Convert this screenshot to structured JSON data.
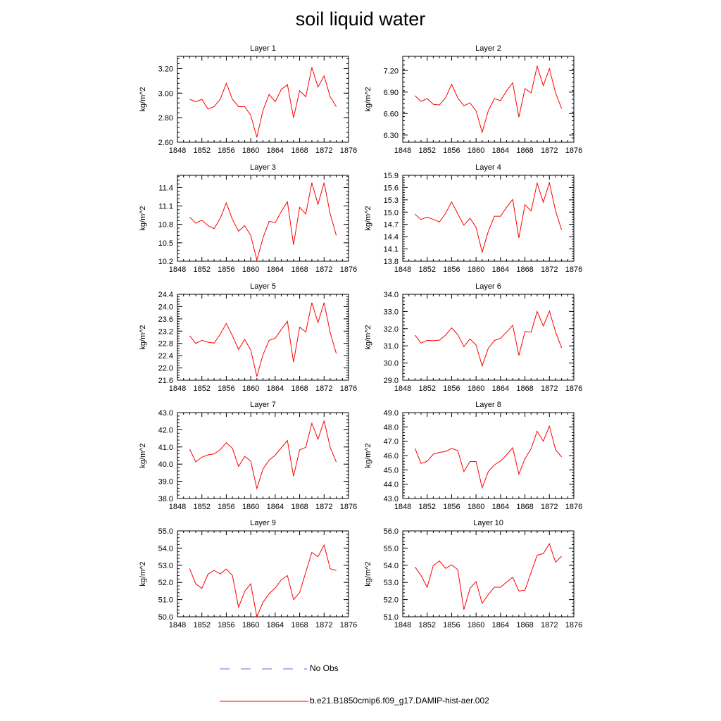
{
  "title": "soil liquid water",
  "colors": {
    "model_line": "#ff0000",
    "obs_line": "#5b6fd6",
    "axis": "#000000"
  },
  "legend": {
    "placement": "bottom",
    "entries": [
      {
        "label": "No Obs",
        "style": "dashed",
        "color": "#5b6fd6"
      },
      {
        "label": "b.e21.B1850cmip6.f09_g17.DAMIP-hist-aer.002",
        "style": "solid",
        "color": "#ff0000"
      }
    ]
  },
  "chart_data": [
    {
      "type": "line",
      "title": "Layer 1",
      "ylabel": "kg/m^2",
      "xlim": [
        1848,
        1876
      ],
      "xticks": [
        "1848",
        "1852",
        "1856",
        "1860",
        "1864",
        "1868",
        "1872",
        "1876"
      ],
      "ylim": [
        2.6,
        3.3
      ],
      "yticks": [
        "2.60",
        "2.80",
        "3.00",
        "3.20"
      ],
      "yminor": 0.04,
      "x": [
        1850,
        1851,
        1852,
        1853,
        1854,
        1855,
        1856,
        1857,
        1858,
        1859,
        1860,
        1861,
        1862,
        1863,
        1864,
        1865,
        1866,
        1867,
        1868,
        1869,
        1870,
        1871,
        1872,
        1873,
        1874
      ],
      "series": [
        {
          "values": [
            2.95,
            2.93,
            2.95,
            2.87,
            2.89,
            2.95,
            3.08,
            2.95,
            2.89,
            2.89,
            2.82,
            2.64,
            2.86,
            2.99,
            2.93,
            3.03,
            3.07,
            2.8,
            3.02,
            2.97,
            3.21,
            3.05,
            3.14,
            2.97,
            2.89
          ]
        }
      ]
    },
    {
      "type": "line",
      "title": "Layer 2",
      "ylabel": "kg/m^2",
      "xlim": [
        1848,
        1876
      ],
      "xticks": [
        "1848",
        "1852",
        "1856",
        "1860",
        "1864",
        "1868",
        "1872",
        "1876"
      ],
      "ylim": [
        6.2,
        7.4
      ],
      "yticks": [
        "6.30",
        "6.60",
        "6.90",
        "7.20"
      ],
      "yminor": 0.06,
      "x": [
        1850,
        1851,
        1852,
        1853,
        1854,
        1855,
        1856,
        1857,
        1858,
        1859,
        1860,
        1861,
        1862,
        1863,
        1864,
        1865,
        1866,
        1867,
        1868,
        1869,
        1870,
        1871,
        1872,
        1873,
        1874
      ],
      "series": [
        {
          "values": [
            6.85,
            6.77,
            6.81,
            6.73,
            6.72,
            6.82,
            7.01,
            6.82,
            6.71,
            6.75,
            6.64,
            6.34,
            6.64,
            6.81,
            6.78,
            6.92,
            7.03,
            6.55,
            6.95,
            6.89,
            7.26,
            6.99,
            7.23,
            6.89,
            6.67
          ]
        }
      ]
    },
    {
      "type": "line",
      "title": "Layer 3",
      "ylabel": "kg/m^2",
      "xlim": [
        1848,
        1876
      ],
      "xticks": [
        "1848",
        "1852",
        "1856",
        "1860",
        "1864",
        "1868",
        "1872",
        "1876"
      ],
      "ylim": [
        10.2,
        11.6
      ],
      "yticks": [
        "10.2",
        "10.5",
        "10.8",
        "11.1",
        "11.4"
      ],
      "yminor": 0.06,
      "x": [
        1850,
        1851,
        1852,
        1853,
        1854,
        1855,
        1856,
        1857,
        1858,
        1859,
        1860,
        1861,
        1862,
        1863,
        1864,
        1865,
        1866,
        1867,
        1868,
        1869,
        1870,
        1871,
        1872,
        1873,
        1874
      ],
      "series": [
        {
          "values": [
            10.92,
            10.82,
            10.87,
            10.78,
            10.73,
            10.9,
            11.15,
            10.88,
            10.69,
            10.78,
            10.62,
            10.22,
            10.58,
            10.85,
            10.83,
            11.01,
            11.17,
            10.47,
            11.08,
            10.97,
            11.48,
            11.13,
            11.48,
            10.97,
            10.62
          ]
        }
      ]
    },
    {
      "type": "line",
      "title": "Layer 4",
      "ylabel": "kg/m^2",
      "xlim": [
        1848,
        1876
      ],
      "xticks": [
        "1848",
        "1852",
        "1856",
        "1860",
        "1864",
        "1868",
        "1872",
        "1876"
      ],
      "ylim": [
        13.8,
        15.9
      ],
      "yticks": [
        "13.8",
        "14.1",
        "14.4",
        "14.7",
        "15.0",
        "15.3",
        "15.6",
        "15.9"
      ],
      "yminor": 0.06,
      "x": [
        1850,
        1851,
        1852,
        1853,
        1854,
        1855,
        1856,
        1857,
        1858,
        1859,
        1860,
        1861,
        1862,
        1863,
        1864,
        1865,
        1866,
        1867,
        1868,
        1869,
        1870,
        1871,
        1872,
        1873,
        1874
      ],
      "series": [
        {
          "values": [
            14.95,
            14.82,
            14.88,
            14.82,
            14.76,
            14.97,
            15.25,
            14.96,
            14.68,
            14.85,
            14.63,
            14.02,
            14.53,
            14.9,
            14.9,
            15.12,
            15.31,
            14.37,
            15.18,
            15.03,
            15.71,
            15.24,
            15.72,
            15.03,
            14.57
          ]
        }
      ]
    },
    {
      "type": "line",
      "title": "Layer 5",
      "ylabel": "kg/m^2",
      "xlim": [
        1848,
        1876
      ],
      "xticks": [
        "1848",
        "1852",
        "1856",
        "1860",
        "1864",
        "1868",
        "1872",
        "1876"
      ],
      "ylim": [
        21.6,
        24.4
      ],
      "yticks": [
        "21.6",
        "22.0",
        "22.4",
        "22.8",
        "23.2",
        "23.6",
        "24.0",
        "24.4"
      ],
      "yminor": 0.08,
      "x": [
        1850,
        1851,
        1852,
        1853,
        1854,
        1855,
        1856,
        1857,
        1858,
        1859,
        1860,
        1861,
        1862,
        1863,
        1864,
        1865,
        1866,
        1867,
        1868,
        1869,
        1870,
        1871,
        1872,
        1873,
        1874
      ],
      "series": [
        {
          "values": [
            23.05,
            22.8,
            22.9,
            22.84,
            22.81,
            23.1,
            23.45,
            23.05,
            22.6,
            22.93,
            22.59,
            21.72,
            22.43,
            22.9,
            22.97,
            23.25,
            23.52,
            22.19,
            23.33,
            23.17,
            24.13,
            23.48,
            24.13,
            23.15,
            22.47
          ]
        }
      ]
    },
    {
      "type": "line",
      "title": "Layer 6",
      "ylabel": "kg/m^2",
      "xlim": [
        1848,
        1876
      ],
      "xticks": [
        "1848",
        "1852",
        "1856",
        "1860",
        "1864",
        "1868",
        "1872",
        "1876"
      ],
      "ylim": [
        29.0,
        34.0
      ],
      "yticks": [
        "29.0",
        "30.0",
        "31.0",
        "32.0",
        "33.0",
        "34.0"
      ],
      "yminor": 0.2,
      "x": [
        1850,
        1851,
        1852,
        1853,
        1854,
        1855,
        1856,
        1857,
        1858,
        1859,
        1860,
        1861,
        1862,
        1863,
        1864,
        1865,
        1866,
        1867,
        1868,
        1869,
        1870,
        1871,
        1872,
        1873,
        1874
      ],
      "series": [
        {
          "values": [
            31.62,
            31.16,
            31.32,
            31.3,
            31.33,
            31.62,
            32.05,
            31.66,
            30.96,
            31.4,
            31.05,
            29.83,
            30.86,
            31.31,
            31.44,
            31.8,
            32.2,
            30.44,
            31.83,
            31.8,
            33.0,
            32.15,
            33.02,
            31.82,
            30.88
          ]
        }
      ]
    },
    {
      "type": "line",
      "title": "Layer 7",
      "ylabel": "kg/m^2",
      "xlim": [
        1848,
        1876
      ],
      "xticks": [
        "1848",
        "1852",
        "1856",
        "1860",
        "1864",
        "1868",
        "1872",
        "1876"
      ],
      "ylim": [
        38.0,
        43.0
      ],
      "yticks": [
        "38.0",
        "39.0",
        "40.0",
        "41.0",
        "42.0",
        "43.0"
      ],
      "yminor": 0.2,
      "x": [
        1850,
        1851,
        1852,
        1853,
        1854,
        1855,
        1856,
        1857,
        1858,
        1859,
        1860,
        1861,
        1862,
        1863,
        1864,
        1865,
        1866,
        1867,
        1868,
        1869,
        1870,
        1871,
        1872,
        1873,
        1874
      ],
      "series": [
        {
          "values": [
            40.87,
            40.13,
            40.4,
            40.54,
            40.6,
            40.85,
            41.25,
            40.92,
            39.87,
            40.45,
            40.18,
            38.58,
            39.72,
            40.23,
            40.52,
            40.95,
            41.38,
            39.3,
            40.83,
            40.98,
            42.38,
            41.45,
            42.52,
            40.98,
            40.12
          ]
        }
      ]
    },
    {
      "type": "line",
      "title": "Layer 8",
      "ylabel": "kg/m^2",
      "xlim": [
        1848,
        1876
      ],
      "xticks": [
        "1848",
        "1852",
        "1856",
        "1860",
        "1864",
        "1868",
        "1872",
        "1876"
      ],
      "ylim": [
        43.0,
        49.0
      ],
      "yticks": [
        "43.0",
        "44.0",
        "45.0",
        "46.0",
        "47.0",
        "48.0",
        "49.0"
      ],
      "yminor": 0.2,
      "x": [
        1850,
        1851,
        1852,
        1853,
        1854,
        1855,
        1856,
        1857,
        1858,
        1859,
        1860,
        1861,
        1862,
        1863,
        1864,
        1865,
        1866,
        1867,
        1868,
        1869,
        1870,
        1871,
        1872,
        1873,
        1874
      ],
      "series": [
        {
          "values": [
            46.5,
            45.45,
            45.6,
            46.1,
            46.22,
            46.28,
            46.5,
            46.35,
            44.88,
            45.58,
            45.58,
            43.75,
            44.88,
            45.35,
            45.62,
            46.05,
            46.55,
            44.7,
            45.78,
            46.48,
            47.7,
            47.0,
            48.05,
            46.42,
            45.9
          ]
        }
      ]
    },
    {
      "type": "line",
      "title": "Layer 9",
      "ylabel": "kg/m^2",
      "xlim": [
        1848,
        1876
      ],
      "xticks": [
        "1848",
        "1852",
        "1856",
        "1860",
        "1864",
        "1868",
        "1872",
        "1876"
      ],
      "ylim": [
        50.0,
        55.0
      ],
      "yticks": [
        "50.0",
        "51.0",
        "52.0",
        "53.0",
        "54.0",
        "55.0"
      ],
      "yminor": 0.2,
      "x": [
        1850,
        1851,
        1852,
        1853,
        1854,
        1855,
        1856,
        1857,
        1858,
        1859,
        1860,
        1861,
        1862,
        1863,
        1864,
        1865,
        1866,
        1867,
        1868,
        1869,
        1870,
        1871,
        1872,
        1873,
        1874
      ],
      "series": [
        {
          "values": [
            52.8,
            51.92,
            51.65,
            52.48,
            52.7,
            52.5,
            52.78,
            52.4,
            50.55,
            51.48,
            51.92,
            50.0,
            50.85,
            51.35,
            51.68,
            52.15,
            52.4,
            51.0,
            51.42,
            52.6,
            53.75,
            53.5,
            54.18,
            52.8,
            52.7
          ]
        }
      ]
    },
    {
      "type": "line",
      "title": "Layer 10",
      "ylabel": "kg/m^2",
      "xlim": [
        1848,
        1876
      ],
      "xticks": [
        "1848",
        "1852",
        "1856",
        "1860",
        "1864",
        "1868",
        "1872",
        "1876"
      ],
      "ylim": [
        51.0,
        56.0
      ],
      "yticks": [
        "51.0",
        "52.0",
        "53.0",
        "54.0",
        "55.0",
        "56.0"
      ],
      "yminor": 0.2,
      "x": [
        1850,
        1851,
        1852,
        1853,
        1854,
        1855,
        1856,
        1857,
        1858,
        1859,
        1860,
        1861,
        1862,
        1863,
        1864,
        1865,
        1866,
        1867,
        1868,
        1869,
        1870,
        1871,
        1872,
        1873,
        1874
      ],
      "series": [
        {
          "values": [
            53.9,
            53.4,
            52.72,
            53.98,
            54.25,
            53.82,
            54.02,
            53.75,
            51.42,
            52.65,
            53.05,
            51.78,
            52.3,
            52.72,
            52.72,
            53.02,
            53.3,
            52.5,
            52.55,
            53.58,
            54.58,
            54.68,
            55.25,
            54.18,
            54.52
          ]
        }
      ]
    }
  ]
}
